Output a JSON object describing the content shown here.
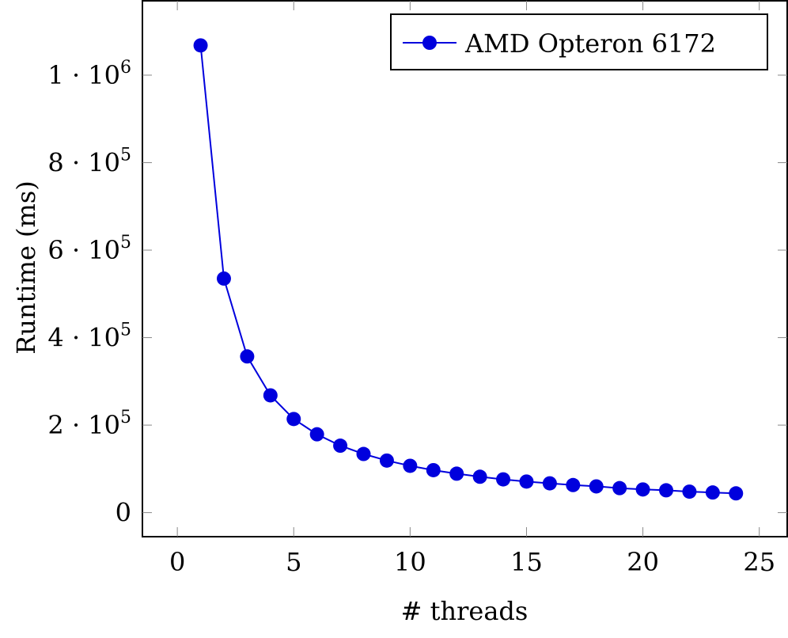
{
  "chart_data": {
    "type": "line",
    "title": "",
    "xlabel": "# threads",
    "ylabel": "Runtime (ms)",
    "xlim": [
      -1.5,
      26.2
    ],
    "ylim": [
      -55000,
      1170000
    ],
    "x_ticks": [
      0,
      5,
      10,
      15,
      20,
      25
    ],
    "y_ticks": [
      {
        "value": 0,
        "mantissa": "0",
        "exponent": ""
      },
      {
        "value": 200000,
        "mantissa": "2 · 10",
        "exponent": "5"
      },
      {
        "value": 400000,
        "mantissa": "4 · 10",
        "exponent": "5"
      },
      {
        "value": 600000,
        "mantissa": "6 · 10",
        "exponent": "5"
      },
      {
        "value": 800000,
        "mantissa": "8 · 10",
        "exponent": "5"
      },
      {
        "value": 1000000,
        "mantissa": "1 · 10",
        "exponent": "6"
      }
    ],
    "grid": false,
    "legend_position": "top-right",
    "series": [
      {
        "name": "AMD Opteron 6172",
        "color": "#0000dd",
        "x": [
          1,
          2,
          3,
          4,
          5,
          6,
          7,
          8,
          9,
          10,
          11,
          12,
          13,
          14,
          15,
          16,
          17,
          18,
          19,
          20,
          21,
          22,
          23,
          24
        ],
        "y": [
          1068000,
          535000,
          357000,
          268000,
          214000,
          179000,
          153000,
          134000,
          119000,
          107000,
          97000,
          89000,
          82000,
          76000,
          71000,
          67000,
          63000,
          60000,
          56000,
          53000,
          51000,
          48000,
          46000,
          44000
        ]
      }
    ]
  }
}
